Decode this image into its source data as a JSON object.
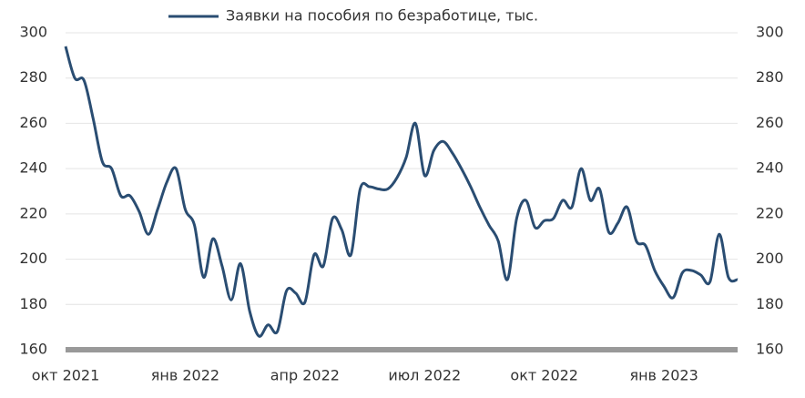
{
  "chart_data": {
    "type": "line",
    "categories": [
      "окт 2021",
      null,
      null,
      null,
      null,
      null,
      null,
      null,
      null,
      null,
      null,
      null,
      null,
      "янв 2022",
      null,
      null,
      null,
      null,
      null,
      null,
      null,
      null,
      null,
      null,
      null,
      null,
      "апр 2022",
      null,
      null,
      null,
      null,
      null,
      null,
      null,
      null,
      null,
      null,
      null,
      null,
      "июл 2022",
      null,
      null,
      null,
      null,
      null,
      null,
      null,
      null,
      null,
      null,
      null,
      null,
      "окт 2022",
      null,
      null,
      null,
      null,
      null,
      null,
      null,
      null,
      null,
      null,
      null,
      null,
      "янв 2023",
      null,
      null,
      null,
      null,
      null,
      null,
      null,
      null
    ],
    "series": [
      {
        "name": "Заявки на пособия по безработице, тыс.",
        "color": "#2a4d72",
        "values": [
          294,
          280,
          279,
          262,
          243,
          240,
          228,
          228,
          221,
          211,
          222,
          234,
          240,
          222,
          215,
          192,
          209,
          197,
          182,
          198,
          177,
          166,
          171,
          168,
          186,
          185,
          181,
          202,
          197,
          218,
          213,
          202,
          231,
          232,
          231,
          231,
          236,
          245,
          260,
          237,
          248,
          252,
          247,
          240,
          232,
          223,
          215,
          208,
          191,
          218,
          226,
          214,
          217,
          218,
          226,
          223,
          240,
          226,
          231,
          212,
          216,
          223,
          208,
          206,
          195,
          188,
          183,
          194,
          195,
          193,
          190,
          211,
          192,
          191
        ]
      }
    ],
    "ylim": [
      160,
      300
    ],
    "yticks": [
      160,
      180,
      200,
      220,
      240,
      260,
      280,
      300
    ],
    "y2lim": [
      160,
      300
    ],
    "y2ticks": [
      160,
      180,
      200,
      220,
      240,
      260,
      280,
      300
    ],
    "grid": true
  }
}
